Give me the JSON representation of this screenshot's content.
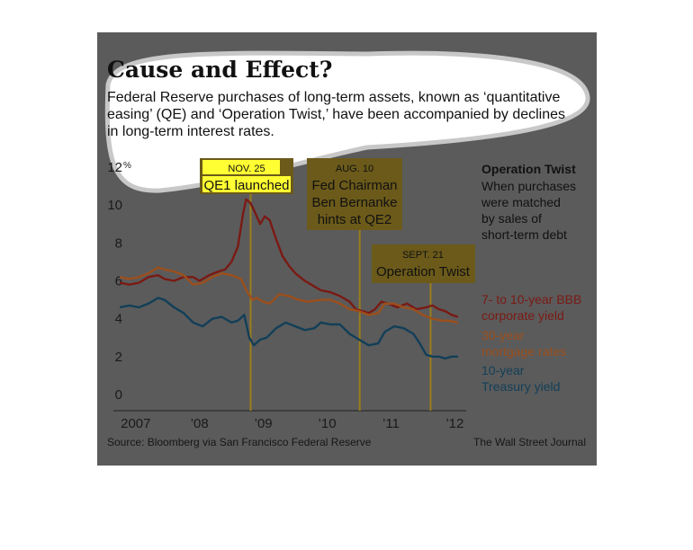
{
  "chart_data": {
    "type": "line",
    "title": "Cause and Effect?",
    "subtitle_lines": [
      "Federal Reserve purchases of long-term assets, known as ‘quantitative",
      "easing’ (QE) and ‘Operation Twist,’ have been accompanied by declines",
      "in long-term interest rates."
    ],
    "ylim": [
      0,
      12
    ],
    "y_unit": "%",
    "y_ticks": [
      "12",
      "10",
      "8",
      "6",
      "4",
      "2",
      "0"
    ],
    "x_tick_labels": [
      "2007",
      "’08",
      "’09",
      "’10",
      "’11",
      "’12"
    ],
    "x_tick_years": [
      2007,
      2008,
      2009,
      2010,
      2011,
      2012
    ],
    "xlim": [
      2006.75,
      2012.25
    ],
    "series": [
      {
        "name_lines": [
          "7- to 10-year BBB",
          "corporate yield"
        ],
        "color": "#7a1a14",
        "x": [
          2006.85,
          2007.0,
          2007.15,
          2007.3,
          2007.45,
          2007.55,
          2007.7,
          2007.85,
          2008.0,
          2008.1,
          2008.25,
          2008.4,
          2008.5,
          2008.6,
          2008.7,
          2008.78,
          2008.83,
          2008.9,
          2008.97,
          2009.05,
          2009.12,
          2009.2,
          2009.3,
          2009.4,
          2009.5,
          2009.6,
          2009.75,
          2009.9,
          2010.0,
          2010.15,
          2010.3,
          2010.45,
          2010.55,
          2010.65,
          2010.75,
          2010.85,
          2010.95,
          2011.05,
          2011.2,
          2011.35,
          2011.5,
          2011.65,
          2011.75,
          2011.85,
          2011.95,
          2012.05,
          2012.15
        ],
        "values": [
          5.9,
          5.8,
          5.9,
          6.2,
          6.3,
          6.1,
          6.0,
          6.2,
          6.2,
          6.0,
          6.3,
          6.5,
          6.6,
          7.0,
          7.8,
          9.5,
          10.3,
          10.1,
          9.6,
          9.0,
          9.4,
          9.2,
          8.2,
          7.3,
          6.8,
          6.4,
          6.0,
          5.7,
          5.5,
          5.4,
          5.2,
          4.9,
          4.5,
          4.4,
          4.3,
          4.5,
          4.9,
          4.8,
          4.6,
          4.8,
          4.5,
          4.6,
          4.7,
          4.5,
          4.4,
          4.2,
          4.1
        ]
      },
      {
        "name_lines": [
          "30-year",
          "mortgage rates"
        ],
        "color": "#9c4f1c",
        "x": [
          2006.85,
          2007.0,
          2007.15,
          2007.3,
          2007.45,
          2007.55,
          2007.7,
          2007.85,
          2008.0,
          2008.15,
          2008.3,
          2008.45,
          2008.6,
          2008.75,
          2008.85,
          2008.93,
          2009.0,
          2009.1,
          2009.2,
          2009.35,
          2009.5,
          2009.65,
          2009.8,
          2010.0,
          2010.15,
          2010.3,
          2010.45,
          2010.6,
          2010.75,
          2010.9,
          2011.0,
          2011.15,
          2011.3,
          2011.45,
          2011.6,
          2011.75,
          2011.9,
          2012.0,
          2012.15
        ],
        "values": [
          6.2,
          6.1,
          6.2,
          6.4,
          6.7,
          6.6,
          6.5,
          6.3,
          5.8,
          5.9,
          6.2,
          6.4,
          6.3,
          6.1,
          5.4,
          5.0,
          5.1,
          4.9,
          4.8,
          5.3,
          5.2,
          5.0,
          4.9,
          5.0,
          5.0,
          4.8,
          4.5,
          4.4,
          4.2,
          4.3,
          4.8,
          4.8,
          4.6,
          4.5,
          4.2,
          4.0,
          3.9,
          3.9,
          3.8
        ]
      },
      {
        "name_lines": [
          "10-year",
          "Treasury yield"
        ],
        "color": "#123f58",
        "x": [
          2006.85,
          2007.0,
          2007.15,
          2007.3,
          2007.45,
          2007.55,
          2007.7,
          2007.85,
          2008.0,
          2008.15,
          2008.3,
          2008.45,
          2008.6,
          2008.7,
          2008.8,
          2008.88,
          2008.95,
          2009.05,
          2009.15,
          2009.3,
          2009.45,
          2009.6,
          2009.75,
          2009.9,
          2010.0,
          2010.15,
          2010.3,
          2010.45,
          2010.6,
          2010.75,
          2010.9,
          2011.0,
          2011.15,
          2011.3,
          2011.45,
          2011.55,
          2011.65,
          2011.75,
          2011.85,
          2011.95,
          2012.05,
          2012.15
        ],
        "values": [
          4.6,
          4.7,
          4.6,
          4.8,
          5.1,
          5.0,
          4.6,
          4.3,
          3.8,
          3.6,
          4.0,
          4.1,
          3.8,
          3.9,
          4.2,
          3.0,
          2.6,
          2.9,
          3.0,
          3.5,
          3.8,
          3.6,
          3.4,
          3.5,
          3.8,
          3.7,
          3.7,
          3.2,
          2.9,
          2.6,
          2.7,
          3.3,
          3.6,
          3.5,
          3.2,
          2.7,
          2.1,
          2.0,
          2.0,
          1.9,
          2.0,
          2.0
        ]
      }
    ],
    "annotations": [
      {
        "date": "NOV. 25",
        "text_lines": [
          "QE1 launched"
        ],
        "x": 2008.9,
        "highlighted": true
      },
      {
        "date": "AUG. 10",
        "text_lines": [
          "Fed Chairman",
          "Ben Bernanke",
          "hints at QE2"
        ],
        "x": 2010.61,
        "highlighted": false
      },
      {
        "date": "SEPT. 21",
        "text_lines": [
          "Operation Twist"
        ],
        "x": 2011.72,
        "highlighted": false
      }
    ],
    "side_note": {
      "title": "Operation Twist",
      "lines": [
        "When purchases",
        "were matched",
        "by sales of",
        "short-term debt"
      ]
    },
    "source": "Source: Bloomberg via San Francisco Federal Reserve",
    "credit": "The Wall Street Journal"
  },
  "colors": {
    "background": "#5b5b5b",
    "annotation_box": "#6b5a1a",
    "annotation_line": "#9a7d1c",
    "highlight": "#ffff33"
  }
}
